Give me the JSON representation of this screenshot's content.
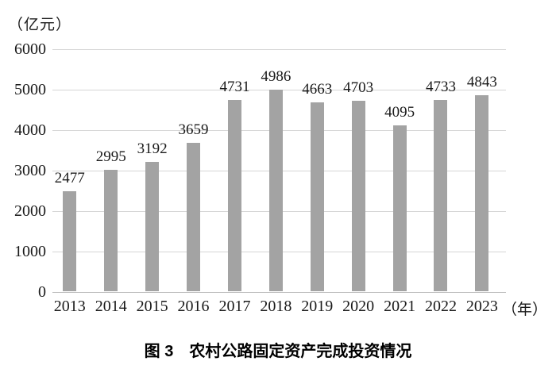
{
  "colors": {
    "bar": "#a3a3a3",
    "gridline": "#d6d6d6",
    "baseline": "#bdbdbd",
    "text": "#1a1a1a"
  },
  "chart_data": {
    "type": "bar",
    "categories": [
      "2013",
      "2014",
      "2015",
      "2016",
      "2017",
      "2018",
      "2019",
      "2020",
      "2021",
      "2022",
      "2023"
    ],
    "values": [
      2477,
      2995,
      3192,
      3659,
      4731,
      4986,
      4663,
      4703,
      4095,
      4733,
      4843
    ],
    "title": "图 3　农村公路固定资产完成投资情况",
    "xlabel": "（年）",
    "ylabel": "（亿元）",
    "ylim": [
      0,
      6000
    ],
    "yticks": [
      0,
      1000,
      2000,
      3000,
      4000,
      5000,
      6000
    ],
    "grid": true,
    "legend": false,
    "data_labels": true
  }
}
